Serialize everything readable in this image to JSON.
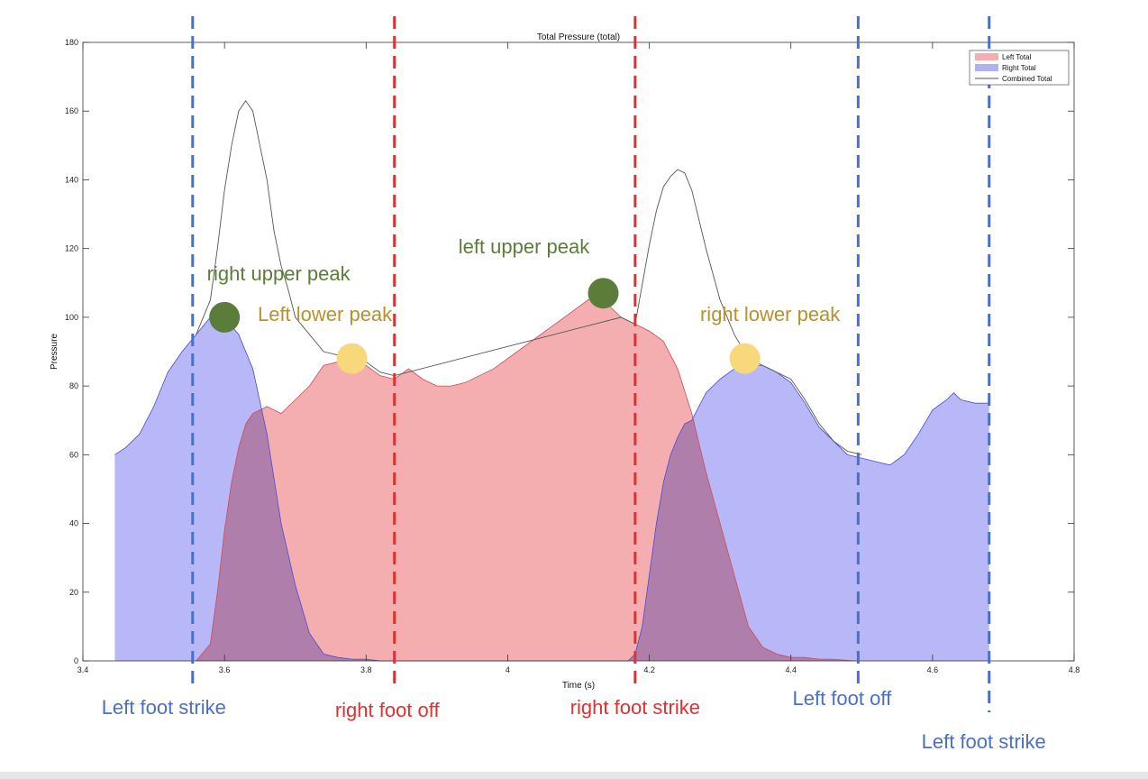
{
  "chart_data": {
    "type": "area",
    "title": "Total Pressure (total)",
    "xlabel": "Time (s)",
    "ylabel": "Pressure",
    "xlim": [
      3.4,
      4.8
    ],
    "ylim": [
      0,
      180
    ],
    "xticks": [
      3.4,
      3.6,
      3.8,
      4,
      4.2,
      4.4,
      4.6,
      4.8
    ],
    "yticks": [
      0,
      20,
      40,
      60,
      80,
      100,
      120,
      140,
      160,
      180
    ],
    "legend_position": "top-right",
    "series": [
      {
        "name": "Left Total",
        "style": "filled-area",
        "color": "#f4aeaf",
        "x": [
          3.56,
          3.58,
          3.59,
          3.6,
          3.61,
          3.62,
          3.63,
          3.64,
          3.65,
          3.66,
          3.67,
          3.68,
          3.69,
          3.7,
          3.72,
          3.74,
          3.76,
          3.78,
          3.8,
          3.82,
          3.84,
          3.86,
          3.88,
          3.9,
          3.92,
          3.94,
          3.96,
          3.98,
          4.0,
          4.02,
          4.04,
          4.06,
          4.08,
          4.1,
          4.12,
          4.14,
          4.16,
          4.18,
          4.2,
          4.22,
          4.24,
          4.26,
          4.28,
          4.3,
          4.32,
          4.34,
          4.36,
          4.38,
          4.4,
          4.42,
          4.44,
          4.46,
          4.49
        ],
        "values": [
          0,
          5,
          20,
          38,
          52,
          62,
          69,
          72,
          73,
          74,
          73,
          72,
          74,
          76,
          80,
          86,
          87,
          86,
          86,
          83,
          82,
          85,
          82,
          80,
          80,
          81,
          83,
          85,
          88,
          91,
          94,
          97,
          100,
          103,
          106,
          104,
          100,
          98,
          96,
          93,
          85,
          72,
          55,
          40,
          25,
          10,
          4,
          2,
          1,
          1,
          0.5,
          0.5,
          0
        ]
      },
      {
        "name": "Right Total",
        "style": "filled-area",
        "color": "#b0b0f7",
        "x": [
          3.445,
          3.46,
          3.48,
          3.5,
          3.52,
          3.54,
          3.56,
          3.58,
          3.6,
          3.62,
          3.64,
          3.66,
          3.68,
          3.7,
          3.72,
          3.74,
          3.76,
          3.78,
          3.8,
          3.82,
          3.84,
          3.86,
          4.17,
          4.18,
          4.19,
          4.2,
          4.21,
          4.22,
          4.23,
          4.24,
          4.25,
          4.26,
          4.28,
          4.3,
          4.32,
          4.34,
          4.36,
          4.38,
          4.4,
          4.42,
          4.44,
          4.46,
          4.48,
          4.5,
          4.52,
          4.54,
          4.56,
          4.58,
          4.6,
          4.62,
          4.63,
          4.64,
          4.66,
          4.68
        ],
        "values": [
          60,
          62,
          66,
          74,
          84,
          90,
          95,
          100,
          100,
          95,
          85,
          66,
          40,
          22,
          8,
          2,
          1,
          0.5,
          0.5,
          0,
          0,
          0,
          0,
          2,
          10,
          25,
          40,
          52,
          60,
          65,
          69,
          70,
          78,
          82,
          85,
          86,
          86,
          84,
          81,
          75,
          68,
          64,
          60,
          59,
          58,
          57,
          60,
          66,
          73,
          76,
          78,
          76,
          75,
          75
        ]
      },
      {
        "name": "Combined Total",
        "style": "line",
        "color": "#555555",
        "x": [
          3.56,
          3.58,
          3.59,
          3.6,
          3.61,
          3.62,
          3.63,
          3.64,
          3.65,
          3.66,
          3.67,
          3.68,
          3.69,
          3.7,
          3.72,
          3.74,
          3.76,
          3.78,
          3.8,
          3.82,
          3.84,
          4.16,
          4.18,
          4.2,
          4.21,
          4.22,
          4.23,
          4.24,
          4.25,
          4.26,
          4.28,
          4.3,
          4.32,
          4.34,
          4.36,
          4.38,
          4.4,
          4.42,
          4.44,
          4.46,
          4.48,
          4.5
        ],
        "values": [
          95,
          105,
          120,
          137,
          150,
          160,
          163,
          160,
          150,
          140,
          125,
          115,
          108,
          100,
          95,
          90,
          89,
          88,
          87,
          84,
          83,
          100,
          98,
          121,
          131,
          138,
          141,
          143,
          142,
          137,
          120,
          105,
          95,
          88,
          86,
          84,
          82,
          76,
          69,
          64,
          61,
          60
        ]
      }
    ],
    "events": [
      {
        "x": 3.555,
        "label": "Left foot strike",
        "color": "#4a6fc4"
      },
      {
        "x": 3.84,
        "label": "right foot off",
        "color": "#e03030"
      },
      {
        "x": 4.18,
        "label": "right foot strike",
        "color": "#e03030"
      },
      {
        "x": 4.495,
        "label": "Left foot off",
        "color": "#4a6fc4"
      },
      {
        "x": 4.68,
        "label": "Left foot strike",
        "color": "#4a6fc4"
      }
    ],
    "peaks": [
      {
        "x": 3.6,
        "y": 100,
        "label": "right upper peak",
        "color": "#5a7d3a",
        "label_color": "#5a7d3a"
      },
      {
        "x": 3.78,
        "y": 88,
        "label": "Left lower peak",
        "color": "#f7d87a",
        "label_color": "#b8902e"
      },
      {
        "x": 4.135,
        "y": 107,
        "label": "left upper peak",
        "color": "#5a7d3a",
        "label_color": "#5a7d3a"
      },
      {
        "x": 4.335,
        "y": 88,
        "label": "right lower peak",
        "color": "#f7d87a",
        "label_color": "#b8902e"
      }
    ]
  }
}
